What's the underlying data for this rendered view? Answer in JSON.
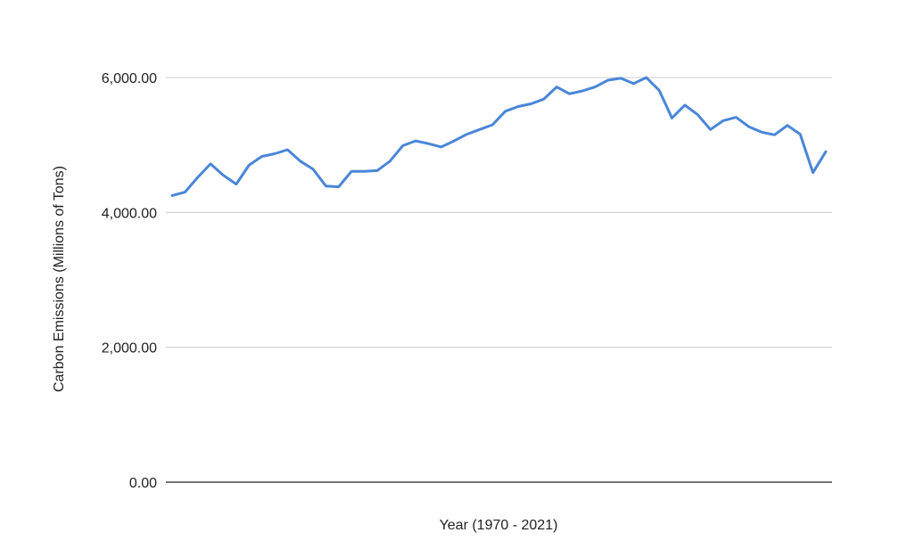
{
  "chart_data": {
    "type": "line",
    "title": "",
    "xlabel": "Year (1970 - 2021)",
    "ylabel": "Carbon Emissions (Millions of Tons)",
    "ylim": [
      0,
      6000
    ],
    "yticks": [
      0,
      2000,
      4000,
      6000
    ],
    "ytick_labels": [
      "0.00",
      "2,000.00",
      "4,000.00",
      "6,000.00"
    ],
    "grid": true,
    "legend": "none",
    "line_color": "#4a86d8",
    "baseline_color": "#222222",
    "grid_color": "#cccccc",
    "x": [
      1970,
      1971,
      1972,
      1973,
      1974,
      1975,
      1976,
      1977,
      1978,
      1979,
      1980,
      1981,
      1982,
      1983,
      1984,
      1985,
      1986,
      1987,
      1988,
      1989,
      1990,
      1991,
      1992,
      1993,
      1994,
      1995,
      1996,
      1997,
      1998,
      1999,
      2000,
      2001,
      2002,
      2003,
      2004,
      2005,
      2006,
      2007,
      2008,
      2009,
      2010,
      2011,
      2012,
      2013,
      2014,
      2015,
      2016,
      2017,
      2018,
      2019,
      2020,
      2021
    ],
    "series": [
      {
        "values": [
          4250,
          4300,
          4520,
          4720,
          4550,
          4420,
          4700,
          4830,
          4870,
          4930,
          4760,
          4640,
          4390,
          4380,
          4610,
          4610,
          4620,
          4760,
          4990,
          5060,
          5020,
          4970,
          5060,
          5160,
          5230,
          5300,
          5500,
          5570,
          5610,
          5680,
          5860,
          5760,
          5800,
          5860,
          5960,
          5990,
          5910,
          6000,
          5810,
          5400,
          5590,
          5450,
          5230,
          5360,
          5410,
          5270,
          5190,
          5150,
          5290,
          5160,
          4590,
          4900
        ]
      }
    ]
  }
}
